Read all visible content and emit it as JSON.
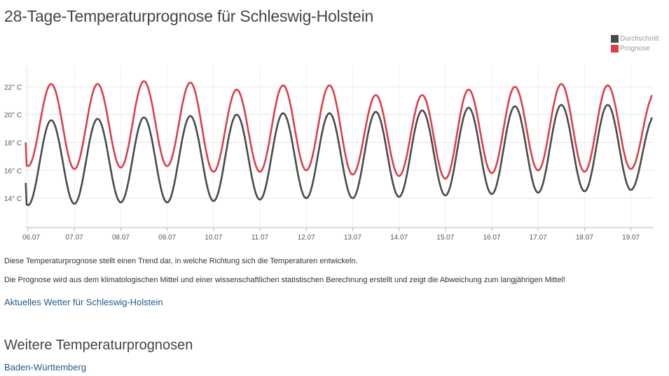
{
  "page": {
    "title": "28-Tage-Temperaturprognose für Schleswig-Holstein",
    "note1": "Diese Temperaturprognose stellt einen Trend dar, in welche Richtung sich die Temperaturen entwickeln.",
    "note2": "Die Prognose wird aus dem klimatologischen Mittel und einer wissenschaftlichen statistischen Berechnung erstellt und zeigt die Abweichung zum langjährigen Mittel!",
    "current_weather_link": "Aktuelles Wetter für Schleswig-Holstein",
    "section_title": "Weitere Temperaturprognosen",
    "region_link": "Baden-Württemberg"
  },
  "chart_data": {
    "type": "line",
    "x_start": "06.07",
    "x_end": "19.07 (+0.5 Tag)",
    "categories": [
      "06.07",
      "07.07",
      "08.07",
      "09.07",
      "10.07",
      "11.07",
      "12.07",
      "13.07",
      "14.07",
      "15.07",
      "16.07",
      "17.07",
      "18.07",
      "19.07"
    ],
    "ylim": [
      12.5,
      23.5
    ],
    "yticks": [
      14,
      16,
      18,
      20,
      22
    ],
    "ytick_labels": [
      "14° C",
      "16° C",
      "18° C",
      "20° C",
      "22° C"
    ],
    "grid": true,
    "legend_position": "top-right",
    "series": [
      {
        "name": "Durchschnitt",
        "color": "#4a4a4a",
        "daily_max": [
          19.6,
          19.7,
          19.8,
          19.9,
          20.0,
          20.1,
          20.1,
          20.2,
          20.3,
          20.5,
          20.6,
          20.7,
          20.7,
          19.8
        ],
        "daily_min": [
          13.5,
          13.6,
          13.7,
          13.7,
          13.8,
          13.9,
          14.0,
          14.0,
          14.1,
          14.2,
          14.3,
          14.4,
          14.5,
          14.6
        ],
        "start_value": 15.1,
        "end_value": 19.8
      },
      {
        "name": "Prognose",
        "color": "#d9404a",
        "daily_max": [
          22.2,
          22.2,
          22.4,
          22.3,
          21.8,
          22.1,
          22.1,
          21.4,
          21.4,
          21.8,
          22.0,
          22.2,
          22.1,
          21.4
        ],
        "daily_min": [
          16.3,
          16.1,
          16.2,
          16.3,
          15.9,
          15.9,
          16.0,
          15.7,
          15.6,
          15.4,
          15.8,
          16.0,
          15.9,
          16.1
        ],
        "start_value": 18.0,
        "end_value": 21.4
      }
    ]
  }
}
